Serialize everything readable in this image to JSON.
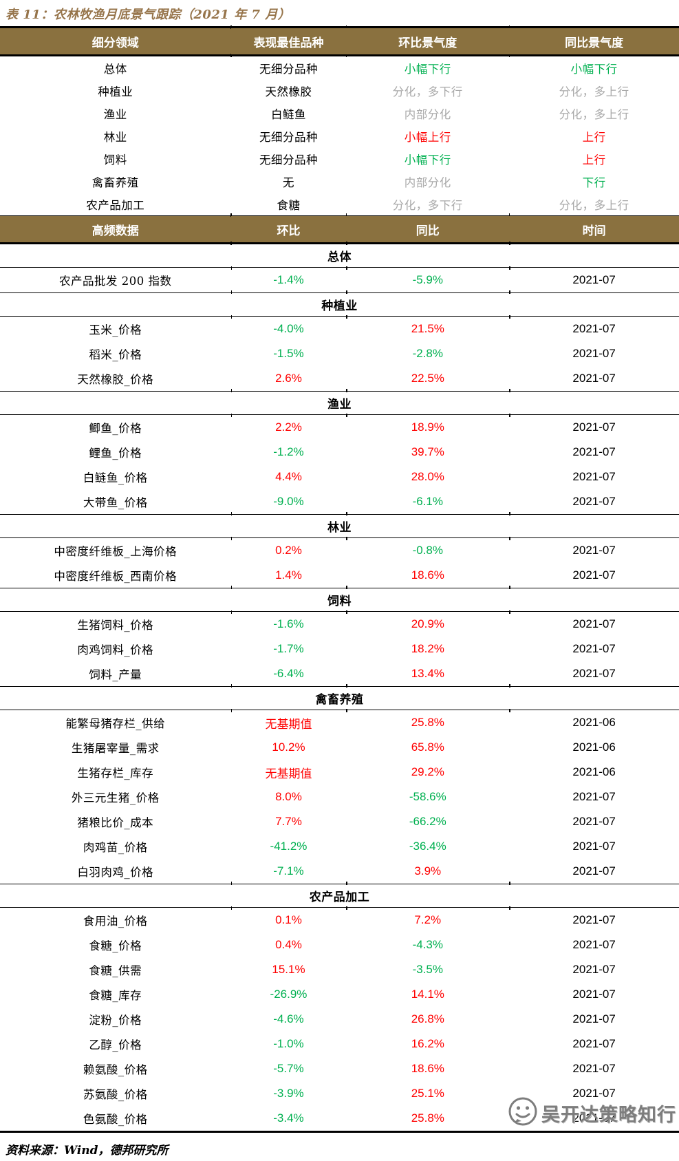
{
  "title": "表 11：农林牧渔月底景气跟踪（2021 年 7 月）",
  "source_note": "资料来源：Wind，德邦研究所",
  "watermark": {
    "text": "吴开达策略知行",
    "icon": "wechat-account-logo"
  },
  "colors": {
    "header_bg": "#8A713F",
    "title_text": "#96744A",
    "up_red": "#FF0000",
    "down_green": "#00B050",
    "neutral_gray": "#A9A9A9",
    "body_text": "#000000"
  },
  "sector_table": {
    "headers": [
      "细分领域",
      "表现最佳品种",
      "环比景气度",
      "同比景气度"
    ],
    "rows": [
      {
        "segment": "总体",
        "best": "无细分品种",
        "mom": {
          "text": "小幅下行",
          "color": "green"
        },
        "yoy": {
          "text": "小幅下行",
          "color": "green"
        }
      },
      {
        "segment": "种植业",
        "best": "天然橡胶",
        "mom": {
          "text": "分化，多下行",
          "color": "gray"
        },
        "yoy": {
          "text": "分化，多上行",
          "color": "gray"
        }
      },
      {
        "segment": "渔业",
        "best": "白鲢鱼",
        "mom": {
          "text": "内部分化",
          "color": "gray"
        },
        "yoy": {
          "text": "分化，多上行",
          "color": "gray"
        }
      },
      {
        "segment": "林业",
        "best": "无细分品种",
        "mom": {
          "text": "小幅上行",
          "color": "red"
        },
        "yoy": {
          "text": "上行",
          "color": "red"
        }
      },
      {
        "segment": "饲料",
        "best": "无细分品种",
        "mom": {
          "text": "小幅下行",
          "color": "green"
        },
        "yoy": {
          "text": "上行",
          "color": "red"
        }
      },
      {
        "segment": "禽畜养殖",
        "best": "无",
        "mom": {
          "text": "内部分化",
          "color": "gray"
        },
        "yoy": {
          "text": "下行",
          "color": "green"
        }
      },
      {
        "segment": "农产品加工",
        "best": "食糖",
        "mom": {
          "text": "分化，多下行",
          "color": "gray"
        },
        "yoy": {
          "text": "分化，多上行",
          "color": "gray"
        }
      }
    ]
  },
  "hf_table": {
    "headers": [
      "高频数据",
      "环比",
      "同比",
      "时间"
    ],
    "sections": [
      {
        "name": "总体",
        "rows": [
          {
            "indicator": "农产品批发 200 指数",
            "mom": {
              "text": "-1.4%",
              "color": "green"
            },
            "yoy": {
              "text": "-5.9%",
              "color": "green"
            },
            "date": "2021-07"
          }
        ]
      },
      {
        "name": "种植业",
        "rows": [
          {
            "indicator": "玉米_价格",
            "mom": {
              "text": "-4.0%",
              "color": "green"
            },
            "yoy": {
              "text": "21.5%",
              "color": "red"
            },
            "date": "2021-07"
          },
          {
            "indicator": "稻米_价格",
            "mom": {
              "text": "-1.5%",
              "color": "green"
            },
            "yoy": {
              "text": "-2.8%",
              "color": "green"
            },
            "date": "2021-07"
          },
          {
            "indicator": "天然橡胶_价格",
            "mom": {
              "text": "2.6%",
              "color": "red"
            },
            "yoy": {
              "text": "22.5%",
              "color": "red"
            },
            "date": "2021-07"
          }
        ]
      },
      {
        "name": "渔业",
        "rows": [
          {
            "indicator": "鲫鱼_价格",
            "mom": {
              "text": "2.2%",
              "color": "red"
            },
            "yoy": {
              "text": "18.9%",
              "color": "red"
            },
            "date": "2021-07"
          },
          {
            "indicator": "鲤鱼_价格",
            "mom": {
              "text": "-1.2%",
              "color": "green"
            },
            "yoy": {
              "text": "39.7%",
              "color": "red"
            },
            "date": "2021-07"
          },
          {
            "indicator": "白鲢鱼_价格",
            "mom": {
              "text": "4.4%",
              "color": "red"
            },
            "yoy": {
              "text": "28.0%",
              "color": "red"
            },
            "date": "2021-07"
          },
          {
            "indicator": "大带鱼_价格",
            "mom": {
              "text": "-9.0%",
              "color": "green"
            },
            "yoy": {
              "text": "-6.1%",
              "color": "green"
            },
            "date": "2021-07"
          }
        ]
      },
      {
        "name": "林业",
        "rows": [
          {
            "indicator": "中密度纤维板_上海价格",
            "mom": {
              "text": "0.2%",
              "color": "red"
            },
            "yoy": {
              "text": "-0.8%",
              "color": "green"
            },
            "date": "2021-07"
          },
          {
            "indicator": "中密度纤维板_西南价格",
            "mom": {
              "text": "1.4%",
              "color": "red"
            },
            "yoy": {
              "text": "18.6%",
              "color": "red"
            },
            "date": "2021-07"
          }
        ]
      },
      {
        "name": "饲料",
        "rows": [
          {
            "indicator": "生猪饲料_价格",
            "mom": {
              "text": "-1.6%",
              "color": "green"
            },
            "yoy": {
              "text": "20.9%",
              "color": "red"
            },
            "date": "2021-07"
          },
          {
            "indicator": "肉鸡饲料_价格",
            "mom": {
              "text": "-1.7%",
              "color": "green"
            },
            "yoy": {
              "text": "18.2%",
              "color": "red"
            },
            "date": "2021-07"
          },
          {
            "indicator": "饲料_产量",
            "mom": {
              "text": "-6.4%",
              "color": "green"
            },
            "yoy": {
              "text": "13.4%",
              "color": "red"
            },
            "date": "2021-07"
          }
        ]
      },
      {
        "name": "禽畜养殖",
        "rows": [
          {
            "indicator": "能繁母猪存栏_供给",
            "mom": {
              "text": "无基期值",
              "color": "red"
            },
            "yoy": {
              "text": "25.8%",
              "color": "red"
            },
            "date": "2021-06"
          },
          {
            "indicator": "生猪屠宰量_需求",
            "mom": {
              "text": "10.2%",
              "color": "red"
            },
            "yoy": {
              "text": "65.8%",
              "color": "red"
            },
            "date": "2021-06"
          },
          {
            "indicator": "生猪存栏_库存",
            "mom": {
              "text": "无基期值",
              "color": "red"
            },
            "yoy": {
              "text": "29.2%",
              "color": "red"
            },
            "date": "2021-06"
          },
          {
            "indicator": "外三元生猪_价格",
            "mom": {
              "text": "8.0%",
              "color": "red"
            },
            "yoy": {
              "text": "-58.6%",
              "color": "green"
            },
            "date": "2021-07"
          },
          {
            "indicator": "猪粮比价_成本",
            "mom": {
              "text": "7.7%",
              "color": "red"
            },
            "yoy": {
              "text": "-66.2%",
              "color": "green"
            },
            "date": "2021-07"
          },
          {
            "indicator": "肉鸡苗_价格",
            "mom": {
              "text": "-41.2%",
              "color": "green"
            },
            "yoy": {
              "text": "-36.4%",
              "color": "green"
            },
            "date": "2021-07"
          },
          {
            "indicator": "白羽肉鸡_价格",
            "mom": {
              "text": "-7.1%",
              "color": "green"
            },
            "yoy": {
              "text": "3.9%",
              "color": "red"
            },
            "date": "2021-07"
          }
        ]
      },
      {
        "name": "农产品加工",
        "rows": [
          {
            "indicator": "食用油_价格",
            "mom": {
              "text": "0.1%",
              "color": "red"
            },
            "yoy": {
              "text": "7.2%",
              "color": "red"
            },
            "date": "2021-07"
          },
          {
            "indicator": "食糖_价格",
            "mom": {
              "text": "0.4%",
              "color": "red"
            },
            "yoy": {
              "text": "-4.3%",
              "color": "green"
            },
            "date": "2021-07"
          },
          {
            "indicator": "食糖_供需",
            "mom": {
              "text": "15.1%",
              "color": "red"
            },
            "yoy": {
              "text": "-3.5%",
              "color": "green"
            },
            "date": "2021-07"
          },
          {
            "indicator": "食糖_库存",
            "mom": {
              "text": "-26.9%",
              "color": "green"
            },
            "yoy": {
              "text": "14.1%",
              "color": "red"
            },
            "date": "2021-07"
          },
          {
            "indicator": "淀粉_价格",
            "mom": {
              "text": "-4.6%",
              "color": "green"
            },
            "yoy": {
              "text": "26.8%",
              "color": "red"
            },
            "date": "2021-07"
          },
          {
            "indicator": "乙醇_价格",
            "mom": {
              "text": "-1.0%",
              "color": "green"
            },
            "yoy": {
              "text": "16.2%",
              "color": "red"
            },
            "date": "2021-07"
          },
          {
            "indicator": "赖氨酸_价格",
            "mom": {
              "text": "-5.7%",
              "color": "green"
            },
            "yoy": {
              "text": "18.6%",
              "color": "red"
            },
            "date": "2021-07"
          },
          {
            "indicator": "苏氨酸_价格",
            "mom": {
              "text": "-3.9%",
              "color": "green"
            },
            "yoy": {
              "text": "25.1%",
              "color": "red"
            },
            "date": "2021-07"
          },
          {
            "indicator": "色氨酸_价格",
            "mom": {
              "text": "-3.4%",
              "color": "green"
            },
            "yoy": {
              "text": "25.8%",
              "color": "red"
            },
            "date": "2021-07"
          }
        ]
      }
    ]
  }
}
